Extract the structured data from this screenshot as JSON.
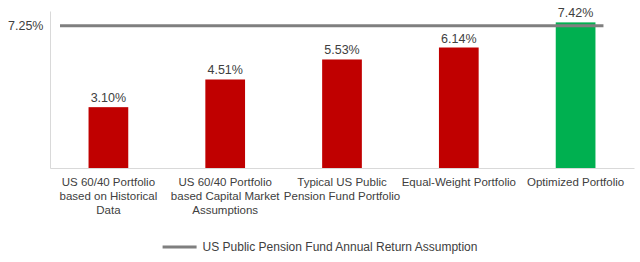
{
  "chart_data": {
    "type": "bar",
    "categories": [
      "US 60/40 Portfolio based on Historical Data",
      "US 60/40 Portfolio based Capital Market Assumptions",
      "Typical US Public Pension Fund Portfolio",
      "Equal-Weight Portfolio",
      "Optimized Portfolio"
    ],
    "values": [
      3.1,
      4.51,
      5.53,
      6.14,
      7.42
    ],
    "value_labels": [
      "3.10%",
      "4.51%",
      "5.53%",
      "6.14%",
      "7.42%"
    ],
    "colors": [
      "#c00000",
      "#c00000",
      "#c00000",
      "#c00000",
      "#00b050"
    ],
    "ylim": [
      0,
      8
    ],
    "tick_labels": "x",
    "data_labels": true,
    "grid": false,
    "legend": "bottom",
    "reference_line": {
      "name": "US Public Pension Fund Annual Return Assumption",
      "value": 7.25,
      "label": "7.25%",
      "color": "#7f7f7f"
    }
  }
}
